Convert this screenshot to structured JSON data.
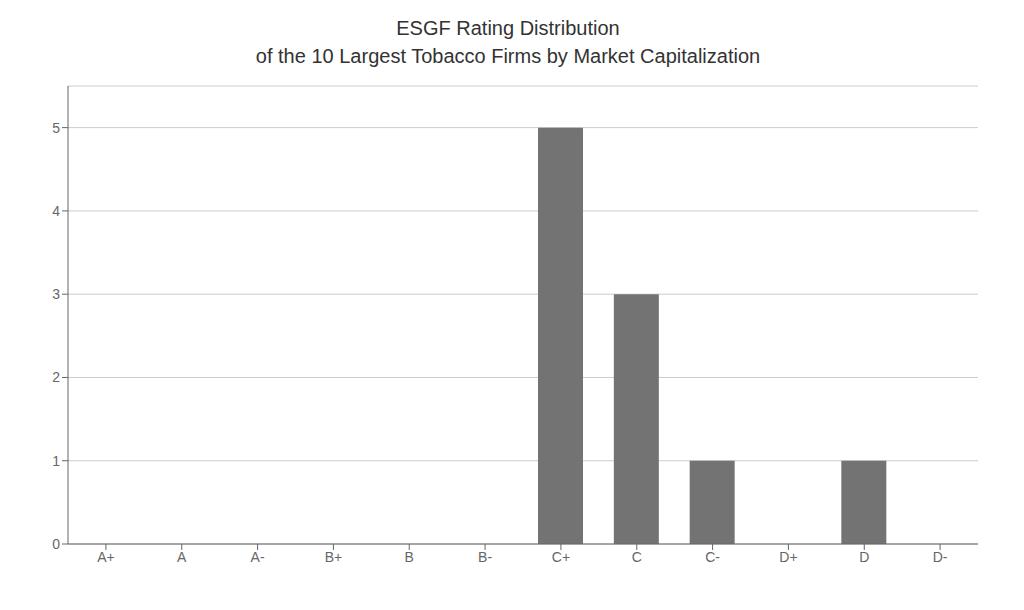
{
  "chart_data": {
    "type": "bar",
    "title": "ESGF Rating Distribution",
    "subtitle": "of the 10 Largest Tobacco Firms by Market Capitalization",
    "categories": [
      "A+",
      "A",
      "A-",
      "B+",
      "B",
      "B-",
      "C+",
      "C",
      "C-",
      "D+",
      "D",
      "D-"
    ],
    "values": [
      0,
      0,
      0,
      0,
      0,
      0,
      5,
      3,
      1,
      0,
      1,
      0
    ],
    "color": "#737373",
    "ylim": [
      0,
      5.5
    ],
    "yticks": [
      0,
      1,
      2,
      3,
      4,
      5
    ],
    "grid": true
  }
}
